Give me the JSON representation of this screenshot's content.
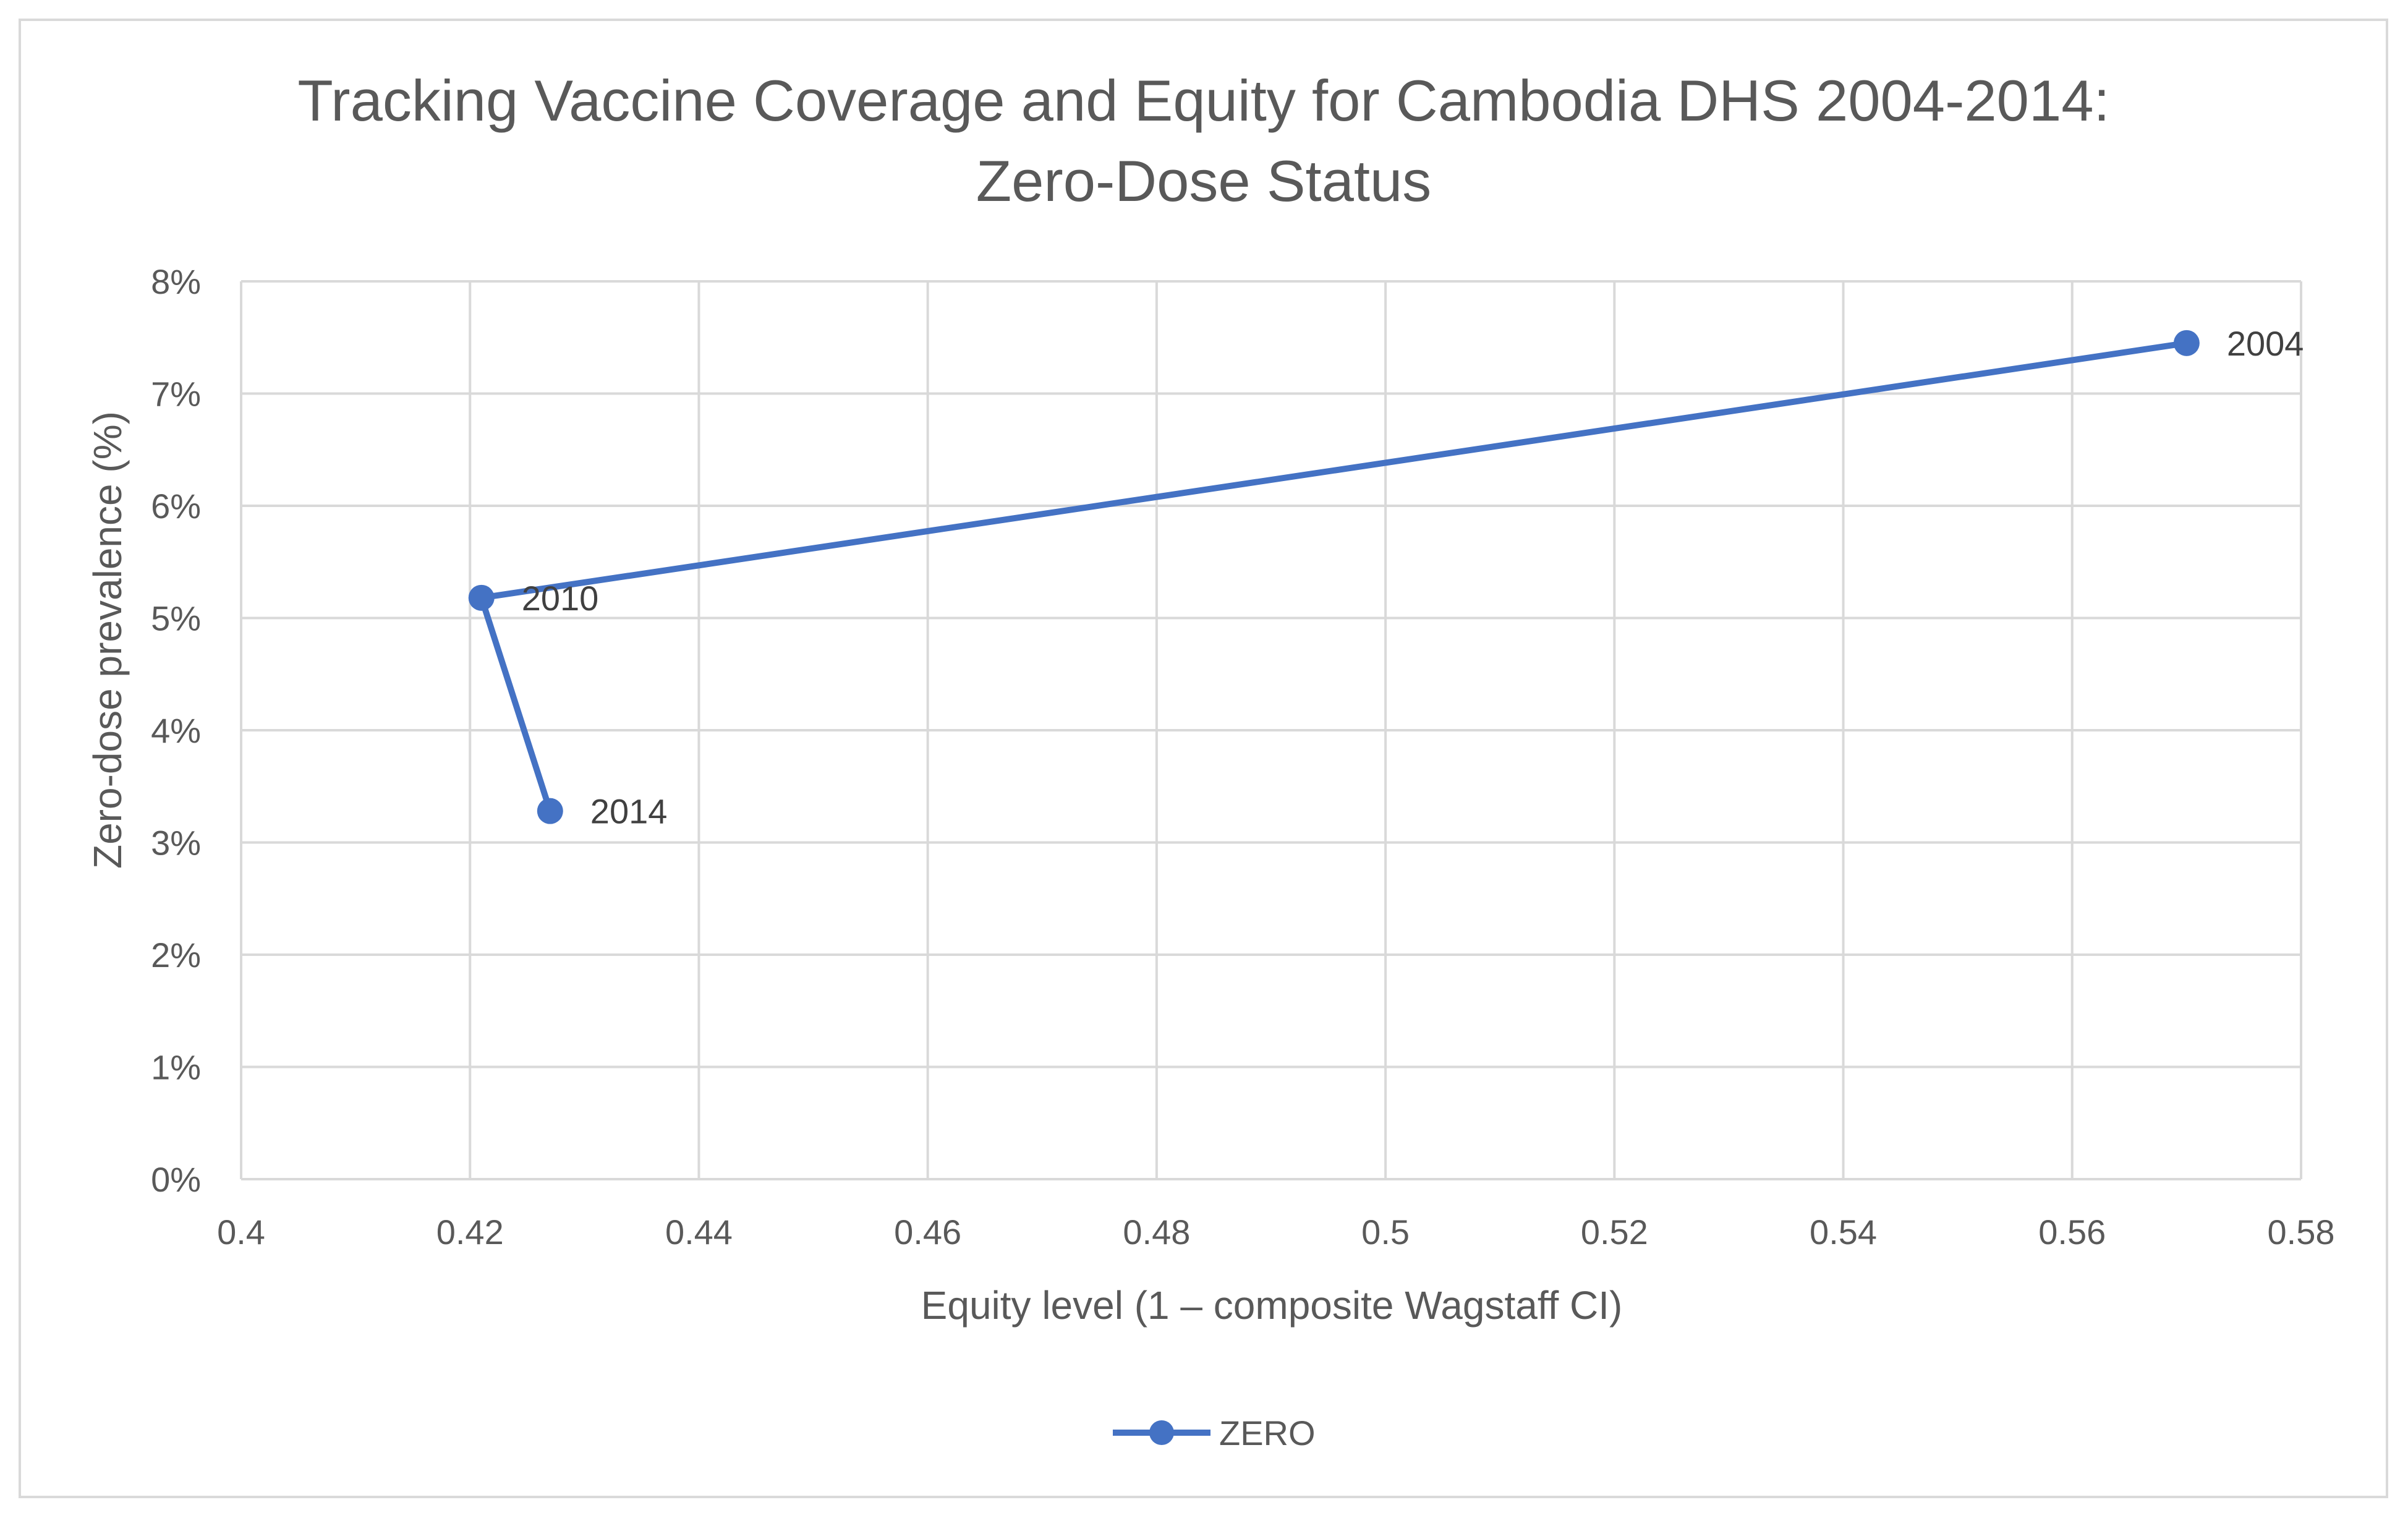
{
  "chart_data": {
    "type": "line",
    "title": [
      "Tracking Vaccine Coverage and Equity for Cambodia DHS 2004-2014:",
      "Zero-Dose Status"
    ],
    "xlabel": "Equity level (1 – composite Wagstaff CI)",
    "ylabel": "Zero-dose prevalence (%)",
    "xlim": [
      0.4,
      0.58
    ],
    "ylim": [
      0,
      8
    ],
    "x_ticks": [
      0.4,
      0.42,
      0.44,
      0.46,
      0.48,
      0.5,
      0.52,
      0.54,
      0.56,
      0.58
    ],
    "x_tick_labels": [
      "0.4",
      "0.42",
      "0.44",
      "0.46",
      "0.48",
      "0.5",
      "0.52",
      "0.54",
      "0.56",
      "0.58"
    ],
    "y_ticks": [
      0,
      1,
      2,
      3,
      4,
      5,
      6,
      7,
      8
    ],
    "y_tick_labels": [
      "0%",
      "1%",
      "2%",
      "3%",
      "4%",
      "5%",
      "6%",
      "7%",
      "8%"
    ],
    "grid": true,
    "legend_position": "bottom-center",
    "series": [
      {
        "name": "ZERO",
        "color": "#4472c4",
        "points": [
          {
            "x": 0.57,
            "y": 7.45,
            "label": "2004"
          },
          {
            "x": 0.421,
            "y": 5.18,
            "label": "2010"
          },
          {
            "x": 0.427,
            "y": 3.28,
            "label": "2014"
          }
        ]
      }
    ]
  },
  "colors": {
    "grid": "#d9d9d9",
    "text": "#595959",
    "series": "#4472c4"
  }
}
